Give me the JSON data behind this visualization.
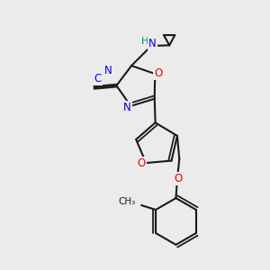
{
  "bg_color": "#ebebeb",
  "bond_color": "#1a1a1a",
  "bond_width": 1.5,
  "dbo": 0.055,
  "atom_colors": {
    "N": "#0000ee",
    "O": "#ee0000",
    "H": "#008888",
    "CN_blue": "#0000ee"
  },
  "fig_size": [
    3.0,
    3.0
  ],
  "dpi": 100
}
